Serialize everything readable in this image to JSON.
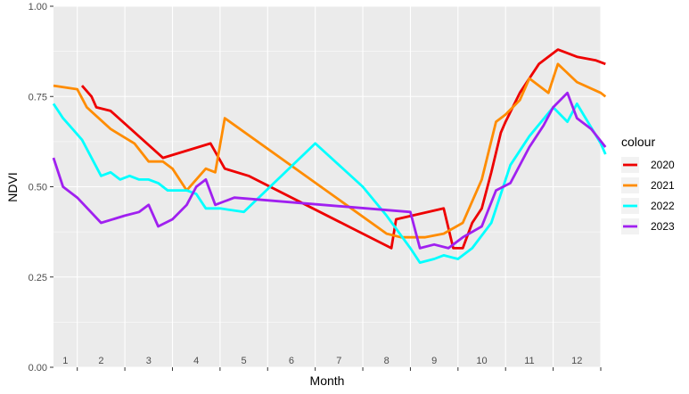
{
  "chart_data": {
    "type": "line",
    "title": "",
    "xlabel": "Month",
    "ylabel": "NDVI",
    "xlim": [
      1,
      12.5
    ],
    "ylim": [
      0,
      1
    ],
    "yticks": [
      "0.00",
      "0.25",
      "0.50",
      "0.75",
      "1.00"
    ],
    "month_labels": [
      "1",
      "2",
      "3",
      "4",
      "5",
      "6",
      "7",
      "8",
      "9",
      "10",
      "11",
      "12"
    ],
    "grid": true,
    "background": "#ebebeb",
    "legend": {
      "title": "colour",
      "position": "right"
    },
    "series": [
      {
        "name": "2020",
        "color": "#ee0000",
        "x": [
          1.6,
          1.8,
          1.9,
          2.2,
          3.3,
          4.3,
          4.6,
          5.1,
          8.1,
          8.2,
          9.2,
          9.4,
          9.6,
          9.8,
          10.0,
          10.2,
          10.4,
          10.5,
          10.8,
          11.2,
          11.6,
          12.0,
          12.4,
          12.6
        ],
        "y": [
          0.78,
          0.75,
          0.72,
          0.71,
          0.58,
          0.62,
          0.55,
          0.53,
          0.33,
          0.41,
          0.44,
          0.33,
          0.33,
          0.4,
          0.44,
          0.54,
          0.65,
          0.68,
          0.76,
          0.84,
          0.88,
          0.86,
          0.85,
          0.84
        ]
      },
      {
        "name": "2021",
        "color": "#ff8c00",
        "x": [
          1.0,
          1.5,
          1.7,
          2.2,
          2.7,
          3.0,
          3.3,
          3.5,
          3.8,
          4.2,
          4.4,
          4.6,
          8.0,
          8.3,
          8.8,
          9.2,
          9.6,
          10.0,
          10.3,
          10.5,
          10.8,
          11.0,
          11.4,
          11.6,
          12.0,
          12.5,
          12.6
        ],
        "y": [
          0.78,
          0.77,
          0.72,
          0.66,
          0.62,
          0.57,
          0.57,
          0.55,
          0.49,
          0.55,
          0.54,
          0.69,
          0.37,
          0.36,
          0.36,
          0.37,
          0.4,
          0.52,
          0.68,
          0.7,
          0.74,
          0.8,
          0.76,
          0.84,
          0.79,
          0.76,
          0.75
        ]
      },
      {
        "name": "2022",
        "color": "#00ffff",
        "x": [
          1.0,
          1.2,
          1.4,
          1.6,
          2.0,
          2.2,
          2.4,
          2.6,
          2.8,
          3.0,
          3.2,
          3.4,
          3.8,
          4.0,
          4.2,
          4.5,
          5.0,
          6.5,
          7.5,
          8.0,
          8.5,
          8.7,
          9.0,
          9.2,
          9.5,
          9.8,
          10.2,
          10.6,
          11.0,
          11.5,
          11.8,
          12.0,
          12.5,
          12.6
        ],
        "y": [
          0.73,
          0.69,
          0.66,
          0.63,
          0.53,
          0.54,
          0.52,
          0.53,
          0.52,
          0.52,
          0.51,
          0.49,
          0.49,
          0.48,
          0.44,
          0.44,
          0.43,
          0.62,
          0.5,
          0.42,
          0.33,
          0.29,
          0.3,
          0.31,
          0.3,
          0.33,
          0.4,
          0.56,
          0.64,
          0.72,
          0.68,
          0.73,
          0.62,
          0.59
        ]
      },
      {
        "name": "2023",
        "color": "#a020f0",
        "x": [
          1.0,
          1.2,
          1.5,
          2.0,
          2.5,
          2.8,
          3.0,
          3.2,
          3.5,
          3.8,
          4.0,
          4.2,
          4.4,
          4.8,
          8.5,
          8.7,
          9.0,
          9.3,
          9.6,
          10.0,
          10.3,
          10.6,
          11.0,
          11.3,
          11.5,
          11.8,
          12.0,
          12.3,
          12.6
        ],
        "y": [
          0.58,
          0.5,
          0.47,
          0.4,
          0.42,
          0.43,
          0.45,
          0.39,
          0.41,
          0.45,
          0.5,
          0.52,
          0.45,
          0.47,
          0.43,
          0.33,
          0.34,
          0.33,
          0.36,
          0.39,
          0.49,
          0.51,
          0.61,
          0.67,
          0.72,
          0.76,
          0.69,
          0.66,
          0.61
        ]
      }
    ]
  }
}
